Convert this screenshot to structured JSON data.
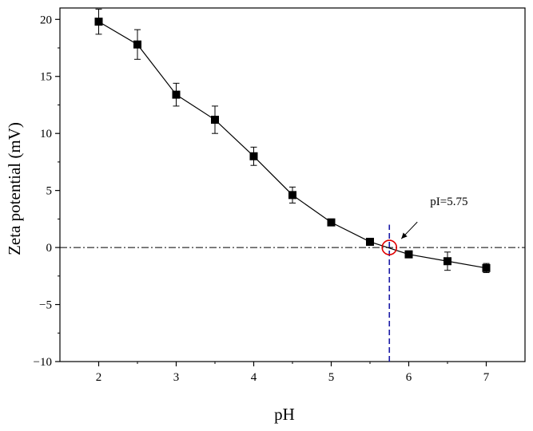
{
  "chart_data": {
    "type": "scatter",
    "xlabel": "pH",
    "ylabel": "Zeta potential (mV)",
    "xlim": [
      1.5,
      7.5
    ],
    "ylim": [
      -10,
      21
    ],
    "x_ticks": [
      2,
      3,
      4,
      5,
      6,
      7
    ],
    "y_ticks": [
      -10,
      -5,
      0,
      5,
      10,
      15,
      20
    ],
    "x_tick_labels": [
      "2",
      "3",
      "4",
      "5",
      "6",
      "7"
    ],
    "y_tick_labels": [
      "-10",
      "-5",
      "0",
      "5",
      "10",
      "15",
      "20"
    ],
    "grid": false,
    "series": [
      {
        "name": "Zeta potential",
        "x": [
          2,
          2.5,
          3,
          3.5,
          4,
          4.5,
          5,
          5.5,
          6,
          6.5,
          7
        ],
        "y": [
          19.8,
          17.8,
          13.4,
          11.2,
          8.0,
          4.6,
          2.2,
          0.5,
          -0.6,
          -1.2,
          -1.8
        ],
        "error": [
          1.1,
          1.3,
          1.0,
          1.2,
          0.8,
          0.7,
          0.3,
          0.3,
          0.3,
          0.8,
          0.4
        ],
        "marker": "square",
        "color": "#000000"
      }
    ],
    "reference_lines": [
      {
        "orientation": "horizontal",
        "value": 0,
        "style": "dash-dot",
        "color": "#000000"
      },
      {
        "orientation": "vertical",
        "value": 5.75,
        "style": "dashed",
        "color": "#1a1aa6",
        "y_range": [
          -10,
          2
        ]
      }
    ],
    "annotations": [
      {
        "text": "pI=5.75",
        "target_x": 5.75,
        "target_y": 0,
        "marker": "circle",
        "color": "#e00000"
      }
    ]
  }
}
